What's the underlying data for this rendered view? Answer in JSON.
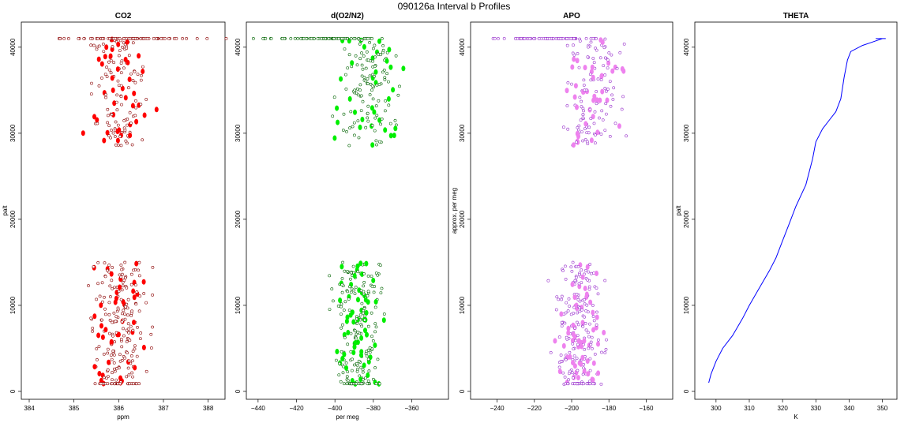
{
  "figure": {
    "title": "090126a   Interval b Profiles"
  },
  "colors": {
    "co2": "#ff0000",
    "co2_edge": "#8b0000",
    "o2n2": "#00ee00",
    "o2n2_edge": "#006400",
    "apo": "#ee82ee",
    "apo_edge": "#9932cc",
    "theta": "#0000ff"
  },
  "chart_data": [
    {
      "id": "co2",
      "type": "scatter",
      "title": "CO2",
      "xlabel": "ppm",
      "ylabel": "palt",
      "xlim": [
        384,
        388.2
      ],
      "ylim": [
        0,
        42000
      ],
      "xticks": [
        384,
        385,
        386,
        387,
        388
      ],
      "yticks": [
        0,
        10000,
        20000,
        30000,
        40000
      ],
      "color": "co2",
      "segments": [
        {
          "y": [
            28500,
            41000
          ],
          "x_center": 386.0,
          "x_spread": 0.55,
          "n": 150
        },
        {
          "y": [
            800,
            15000
          ],
          "x_center": 386.0,
          "x_spread": 0.6,
          "n": 220
        },
        {
          "y": [
            41000,
            41000
          ],
          "x_center": 386.2,
          "x_spread": 1.6,
          "n": 70
        },
        {
          "y": [
            900,
            900
          ],
          "x_center": 386.0,
          "x_spread": 0.5,
          "n": 25
        }
      ]
    },
    {
      "id": "o2n2",
      "type": "scatter",
      "title": "d(O2/N2)",
      "xlabel": "per meg",
      "ylabel": "",
      "xlim": [
        -442,
        -345
      ],
      "ylim": [
        0,
        42000
      ],
      "xticks": [
        -440,
        -420,
        -400,
        -380,
        -360
      ],
      "yticks": [
        0,
        10000,
        20000,
        30000,
        40000
      ],
      "color": "o2n2",
      "segments": [
        {
          "y": [
            28500,
            41000
          ],
          "x_center": -382,
          "x_spread": 14,
          "n": 150
        },
        {
          "y": [
            800,
            15000
          ],
          "x_center": -388,
          "x_spread": 11,
          "n": 220
        },
        {
          "y": [
            41000,
            41000
          ],
          "x_center": -404,
          "x_spread": 28,
          "n": 70
        },
        {
          "y": [
            900,
            900
          ],
          "x_center": -388,
          "x_spread": 10,
          "n": 25
        }
      ]
    },
    {
      "id": "apo",
      "type": "scatter",
      "title": "APO",
      "xlabel": "",
      "ylabel": "approx. per meg",
      "xlim": [
        -250,
        -150
      ],
      "ylim": [
        0,
        42000
      ],
      "xticks": [
        -240,
        -220,
        -200,
        -180,
        -160
      ],
      "yticks": [
        0,
        10000,
        20000,
        30000,
        40000
      ],
      "color": "apo",
      "segments": [
        {
          "y": [
            28500,
            41000
          ],
          "x_center": -188,
          "x_spread": 14,
          "n": 150
        },
        {
          "y": [
            800,
            15000
          ],
          "x_center": -196,
          "x_spread": 11,
          "n": 220
        },
        {
          "y": [
            41000,
            41000
          ],
          "x_center": -214,
          "x_spread": 24,
          "n": 70
        },
        {
          "y": [
            900,
            900
          ],
          "x_center": -196,
          "x_spread": 10,
          "n": 25
        }
      ]
    },
    {
      "id": "theta",
      "type": "line",
      "title": "THETA",
      "xlabel": "K",
      "ylabel": "palt",
      "xlim": [
        296,
        352
      ],
      "ylim": [
        0,
        42000
      ],
      "xticks": [
        300,
        310,
        320,
        330,
        340,
        350
      ],
      "yticks": [
        0,
        10000,
        20000,
        30000,
        40000
      ],
      "color": "theta",
      "series": {
        "x": [
          297.8,
          298.5,
          300,
          302,
          305,
          308,
          310,
          313,
          316,
          318,
          320,
          322,
          324,
          327,
          329,
          330,
          332,
          334,
          336,
          337.5,
          338.5,
          339.5,
          340.5,
          344,
          347,
          350,
          351,
          348
        ],
        "y": [
          1000,
          2000,
          3500,
          5000,
          6500,
          8500,
          10000,
          12000,
          14000,
          15500,
          17500,
          19500,
          21500,
          24000,
          27000,
          29000,
          30500,
          31500,
          32500,
          34000,
          36500,
          38500,
          39500,
          40200,
          40600,
          41000,
          41000,
          41000
        ]
      }
    }
  ]
}
